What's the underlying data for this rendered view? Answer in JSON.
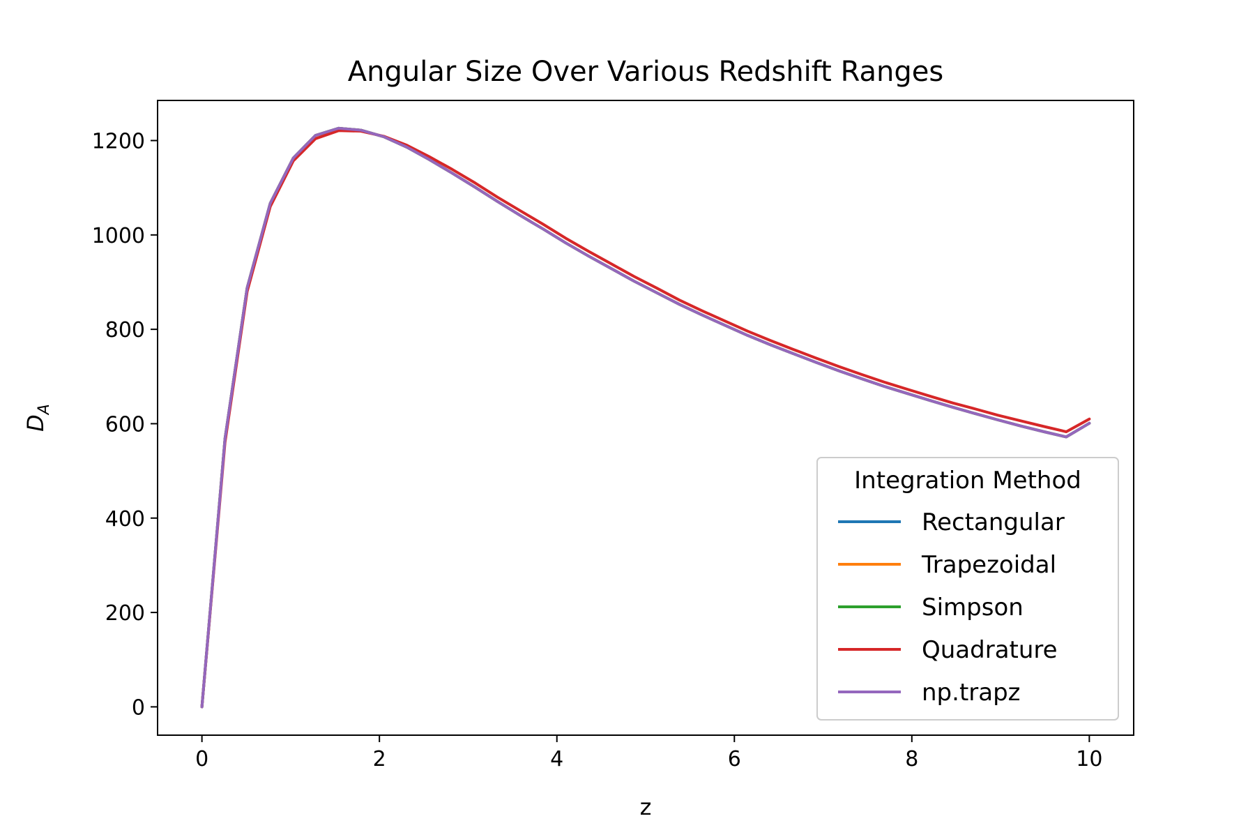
{
  "chart_data": {
    "type": "line",
    "title": "Angular Size Over Various Redshift Ranges",
    "xlabel": "z",
    "ylabel_main": "D",
    "ylabel_sub": "A",
    "xlim": [
      -0.5,
      10.5
    ],
    "ylim": [
      -60,
      1285
    ],
    "xticks": [
      0,
      2,
      4,
      6,
      8,
      10
    ],
    "yticks": [
      0,
      200,
      400,
      600,
      800,
      1000,
      1200
    ],
    "grid": false,
    "legend": {
      "title": "Integration Method",
      "placement": "lower-right"
    },
    "series": [
      {
        "name": "Rectangular",
        "color": "#1f77b4",
        "x": [
          0,
          0.26,
          0.51,
          0.77,
          1.03,
          1.28,
          1.54,
          1.79,
          2.05,
          2.31,
          2.56,
          2.82,
          3.08,
          3.33,
          3.59,
          3.85,
          4.1,
          4.36,
          4.62,
          4.87,
          5.13,
          5.38,
          5.64,
          5.9,
          6.15,
          6.41,
          6.67,
          6.92,
          7.18,
          7.44,
          7.69,
          7.95,
          8.21,
          8.46,
          8.72,
          8.97,
          9.23,
          9.49,
          9.74,
          10.0
        ],
        "y": [
          0,
          568,
          888,
          1067,
          1163,
          1211,
          1226,
          1222,
          1208,
          1186,
          1160,
          1131,
          1101,
          1071,
          1041,
          1012,
          983,
          955,
          928,
          902,
          877,
          853,
          830,
          808,
          787,
          767,
          748,
          730,
          712,
          695,
          679,
          664,
          649,
          635,
          621,
          608,
          595,
          583,
          572,
          601
        ]
      },
      {
        "name": "Trapezoidal",
        "color": "#ff7f0e",
        "x": [
          0,
          0.26,
          0.51,
          0.77,
          1.03,
          1.28,
          1.54,
          1.79,
          2.05,
          2.31,
          2.56,
          2.82,
          3.08,
          3.33,
          3.59,
          3.85,
          4.1,
          4.36,
          4.62,
          4.87,
          5.13,
          5.38,
          5.64,
          5.9,
          6.15,
          6.41,
          6.67,
          6.92,
          7.18,
          7.44,
          7.69,
          7.95,
          8.21,
          8.46,
          8.72,
          8.97,
          9.23,
          9.49,
          9.74,
          10.0
        ],
        "y": [
          0,
          568,
          888,
          1067,
          1163,
          1211,
          1226,
          1222,
          1208,
          1186,
          1160,
          1131,
          1101,
          1071,
          1041,
          1012,
          983,
          955,
          928,
          902,
          877,
          853,
          830,
          808,
          787,
          767,
          748,
          730,
          712,
          695,
          679,
          664,
          649,
          635,
          621,
          608,
          595,
          583,
          572,
          601
        ]
      },
      {
        "name": "Simpson",
        "color": "#2ca02c",
        "x": [
          0,
          0.26,
          0.51,
          0.77,
          1.03,
          1.28,
          1.54,
          1.79,
          2.05,
          2.31,
          2.56,
          2.82,
          3.08,
          3.33,
          3.59,
          3.85,
          4.1,
          4.36,
          4.62,
          4.87,
          5.13,
          5.38,
          5.64,
          5.9,
          6.15,
          6.41,
          6.67,
          6.92,
          7.18,
          7.44,
          7.69,
          7.95,
          8.21,
          8.46,
          8.72,
          8.97,
          9.23,
          9.49,
          9.74,
          10.0
        ],
        "y": [
          0,
          568,
          888,
          1067,
          1163,
          1211,
          1226,
          1222,
          1208,
          1186,
          1160,
          1131,
          1101,
          1071,
          1041,
          1012,
          983,
          955,
          928,
          902,
          877,
          853,
          830,
          808,
          787,
          767,
          748,
          730,
          712,
          695,
          679,
          664,
          649,
          635,
          621,
          608,
          595,
          583,
          572,
          601
        ]
      },
      {
        "name": "Quadrature",
        "color": "#d62728",
        "x": [
          0,
          0.26,
          0.51,
          0.77,
          1.03,
          1.28,
          1.54,
          1.79,
          2.05,
          2.31,
          2.56,
          2.82,
          3.08,
          3.33,
          3.59,
          3.85,
          4.1,
          4.36,
          4.62,
          4.87,
          5.13,
          5.38,
          5.64,
          5.9,
          6.15,
          6.41,
          6.67,
          6.92,
          7.18,
          7.44,
          7.69,
          7.95,
          8.21,
          8.46,
          8.72,
          8.97,
          9.23,
          9.49,
          9.74,
          10.0
        ],
        "y": [
          0,
          560,
          880,
          1060,
          1157,
          1204,
          1221,
          1220,
          1209,
          1190,
          1166,
          1139,
          1110,
          1080,
          1051,
          1022,
          993,
          965,
          938,
          912,
          887,
          862,
          839,
          817,
          796,
          776,
          757,
          739,
          721,
          704,
          688,
          673,
          658,
          644,
          631,
          618,
          606,
          594,
          583,
          610
        ]
      },
      {
        "name": "np.trapz",
        "color": "#9467bd",
        "x": [
          0,
          0.26,
          0.51,
          0.77,
          1.03,
          1.28,
          1.54,
          1.79,
          2.05,
          2.31,
          2.56,
          2.82,
          3.08,
          3.33,
          3.59,
          3.85,
          4.1,
          4.36,
          4.62,
          4.87,
          5.13,
          5.38,
          5.64,
          5.9,
          6.15,
          6.41,
          6.67,
          6.92,
          7.18,
          7.44,
          7.69,
          7.95,
          8.21,
          8.46,
          8.72,
          8.97,
          9.23,
          9.49,
          9.74,
          10.0
        ],
        "y": [
          0,
          568,
          888,
          1067,
          1163,
          1211,
          1226,
          1222,
          1208,
          1186,
          1160,
          1131,
          1101,
          1071,
          1041,
          1012,
          983,
          955,
          928,
          902,
          877,
          853,
          830,
          808,
          787,
          767,
          748,
          730,
          712,
          695,
          679,
          664,
          649,
          635,
          621,
          608,
          595,
          583,
          572,
          601
        ]
      }
    ]
  }
}
